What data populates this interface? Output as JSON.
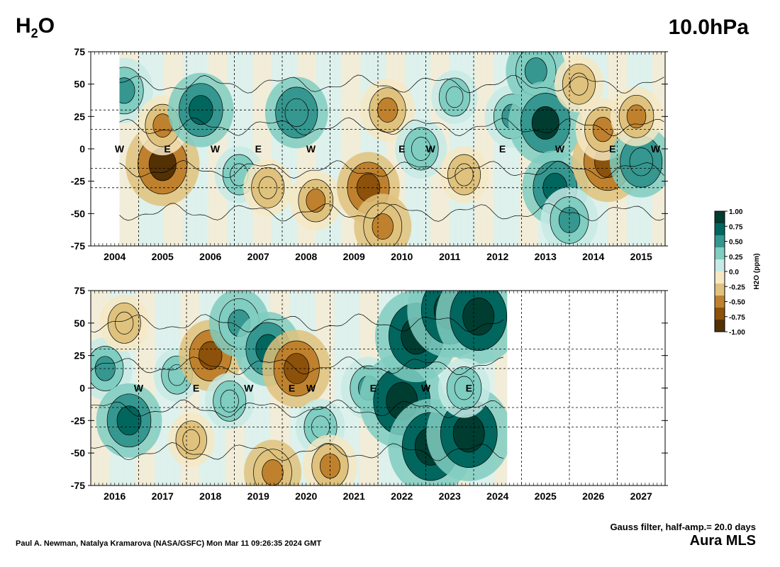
{
  "header": {
    "variable_main": "H",
    "variable_sub": "2",
    "variable_tail": "O",
    "pressure_level": "10.0hPa"
  },
  "footer": {
    "credit": "Paul A. Newman, Natalya Kramarova (NASA/GSFC) Mon Mar 11 09:26:35 2024 GMT",
    "filter_note": "Gauss filter, half-amp.= 20.0 days",
    "instrument": "Aura MLS"
  },
  "colorbar": {
    "label": "H2O (ppm)",
    "ticks": [
      "1.00",
      "0.75",
      "0.50",
      "0.25",
      "0.0",
      "-0.25",
      "-0.50",
      "-0.75",
      "-1.00"
    ],
    "colors": [
      "#003c30",
      "#01665e",
      "#35978f",
      "#80cdc1",
      "#c7eae5",
      "#f6e8c3",
      "#dfc27d",
      "#bf812d",
      "#8c510a",
      "#543005"
    ]
  },
  "chart_data": [
    {
      "type": "heatmap",
      "panel": "top",
      "ylim": [
        -75,
        75
      ],
      "y_ticks": [
        "75",
        "50",
        "25",
        "0",
        "-25",
        "-50",
        "-75"
      ],
      "x_years": [
        "2004",
        "2005",
        "2006",
        "2007",
        "2008",
        "2009",
        "2010",
        "2011",
        "2012",
        "2013",
        "2014",
        "2015"
      ],
      "qbo_markers": [
        {
          "label": "W",
          "year": 2004.1
        },
        {
          "label": "E",
          "year": 2005.1
        },
        {
          "label": "W",
          "year": 2006.1
        },
        {
          "label": "E",
          "year": 2007.0
        },
        {
          "label": "W",
          "year": 2008.1
        },
        {
          "label": "E",
          "year": 2010.0
        },
        {
          "label": "W",
          "year": 2010.6
        },
        {
          "label": "E",
          "year": 2012.1
        },
        {
          "label": "W",
          "year": 2013.3
        },
        {
          "label": "E",
          "year": 2014.4
        },
        {
          "label": "W",
          "year": 2015.3
        }
      ],
      "anomaly_blobs": [
        {
          "year": 2004.2,
          "lat": 45,
          "value": 0.5
        },
        {
          "year": 2005.0,
          "lat": -12,
          "value": -0.8
        },
        {
          "year": 2005.0,
          "lat": 18,
          "value": -0.4
        },
        {
          "year": 2005.8,
          "lat": 30,
          "value": 0.65
        },
        {
          "year": 2006.6,
          "lat": -20,
          "value": 0.35
        },
        {
          "year": 2007.2,
          "lat": -30,
          "value": -0.35
        },
        {
          "year": 2007.8,
          "lat": 28,
          "value": 0.6
        },
        {
          "year": 2008.2,
          "lat": -40,
          "value": -0.4
        },
        {
          "year": 2009.3,
          "lat": -30,
          "value": -0.6
        },
        {
          "year": 2009.6,
          "lat": -60,
          "value": -0.5
        },
        {
          "year": 2009.7,
          "lat": 30,
          "value": -0.45
        },
        {
          "year": 2010.4,
          "lat": 0,
          "value": 0.4
        },
        {
          "year": 2011.1,
          "lat": 40,
          "value": 0.3
        },
        {
          "year": 2011.3,
          "lat": -20,
          "value": -0.35
        },
        {
          "year": 2012.3,
          "lat": 25,
          "value": 0.45
        },
        {
          "year": 2012.8,
          "lat": 60,
          "value": 0.55
        },
        {
          "year": 2013.0,
          "lat": 20,
          "value": 0.8
        },
        {
          "year": 2013.2,
          "lat": -30,
          "value": 0.65
        },
        {
          "year": 2013.5,
          "lat": -55,
          "value": 0.5
        },
        {
          "year": 2013.7,
          "lat": 50,
          "value": -0.35
        },
        {
          "year": 2014.3,
          "lat": -10,
          "value": -0.75
        },
        {
          "year": 2014.2,
          "lat": 15,
          "value": -0.45
        },
        {
          "year": 2015.0,
          "lat": -10,
          "value": 0.6
        },
        {
          "year": 2014.9,
          "lat": 25,
          "value": -0.4
        }
      ]
    },
    {
      "type": "heatmap",
      "panel": "bottom",
      "ylim": [
        -75,
        75
      ],
      "y_ticks": [
        "75",
        "50",
        "25",
        "0",
        "-25",
        "-50",
        "-75"
      ],
      "x_years": [
        "2016",
        "2017",
        "2018",
        "2019",
        "2020",
        "2021",
        "2022",
        "2023",
        "2024",
        "2025",
        "2026",
        "2027"
      ],
      "qbo_markers": [
        {
          "label": "W",
          "year": 2016.5
        },
        {
          "label": "E",
          "year": 2017.7
        },
        {
          "label": "W",
          "year": 2018.8
        },
        {
          "label": "E",
          "year": 2019.7
        },
        {
          "label": "W",
          "year": 2020.1
        },
        {
          "label": "E",
          "year": 2021.4
        },
        {
          "label": "W",
          "year": 2022.5
        },
        {
          "label": "E",
          "year": 2023.4
        }
      ],
      "data_end_year": 2024.2,
      "anomaly_blobs": [
        {
          "year": 2015.8,
          "lat": 15,
          "value": 0.45
        },
        {
          "year": 2016.3,
          "lat": -25,
          "value": 0.65
        },
        {
          "year": 2016.2,
          "lat": 50,
          "value": -0.35
        },
        {
          "year": 2017.3,
          "lat": 10,
          "value": 0.3
        },
        {
          "year": 2017.6,
          "lat": -40,
          "value": -0.3
        },
        {
          "year": 2018.0,
          "lat": 25,
          "value": -0.6
        },
        {
          "year": 2018.4,
          "lat": -10,
          "value": 0.35
        },
        {
          "year": 2018.6,
          "lat": 50,
          "value": 0.55
        },
        {
          "year": 2019.2,
          "lat": 30,
          "value": 0.65
        },
        {
          "year": 2019.3,
          "lat": -65,
          "value": -0.5
        },
        {
          "year": 2019.8,
          "lat": 15,
          "value": -0.7
        },
        {
          "year": 2020.3,
          "lat": -30,
          "value": 0.35
        },
        {
          "year": 2020.5,
          "lat": -60,
          "value": -0.45
        },
        {
          "year": 2021.3,
          "lat": 0,
          "value": 0.45
        },
        {
          "year": 2022.0,
          "lat": -10,
          "value": 1.0
        },
        {
          "year": 2022.3,
          "lat": 40,
          "value": 0.95
        },
        {
          "year": 2022.6,
          "lat": -45,
          "value": 1.0
        },
        {
          "year": 2023.0,
          "lat": 60,
          "value": 1.0
        },
        {
          "year": 2023.4,
          "lat": -35,
          "value": 1.0
        },
        {
          "year": 2023.6,
          "lat": 55,
          "value": 1.0
        },
        {
          "year": 2023.3,
          "lat": 0,
          "value": 0.4
        }
      ]
    }
  ]
}
